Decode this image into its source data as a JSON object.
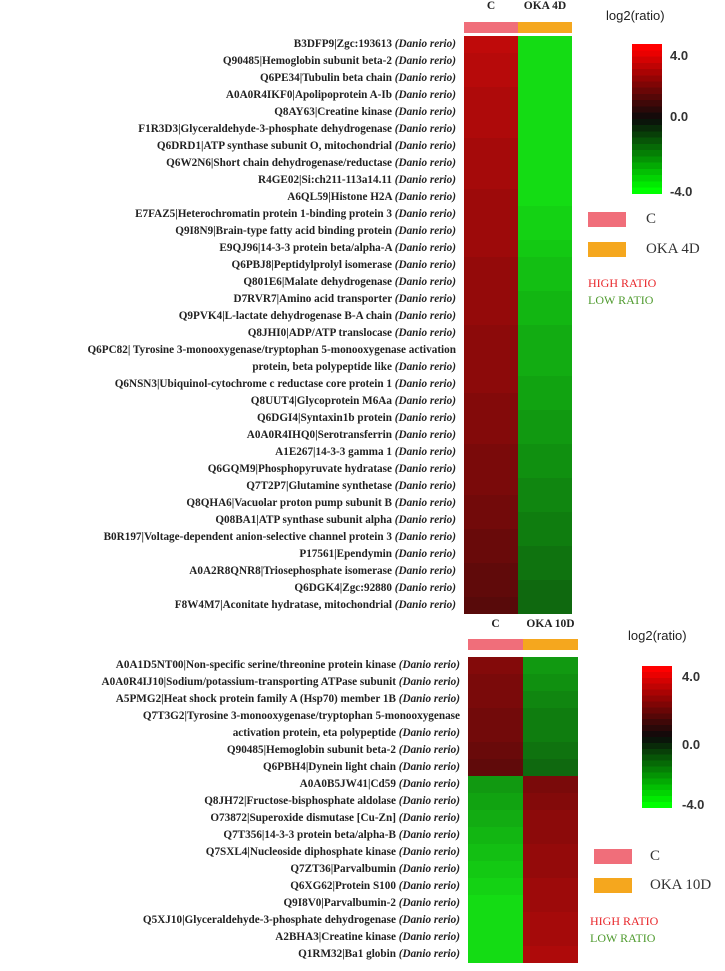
{
  "colors": {
    "control": "#f06e7a",
    "treated": "#f5a71e",
    "high": "#ff0000",
    "mid": "#000000",
    "low": "#00ff00",
    "high_text": "#e8262a",
    "low_text": "#4e9a2d"
  },
  "chart_data": [
    {
      "type": "heatmap",
      "columns": [
        "C",
        "OKA 4D"
      ],
      "scale": {
        "title": "log2(ratio)",
        "min": -4.0,
        "max": 4.0,
        "ticks": [
          "4.0",
          "0.0",
          "-4.0"
        ]
      },
      "legend": {
        "items": [
          "C",
          "OKA 4D"
        ],
        "high": "HIGH RATIO",
        "low": "LOW RATIO"
      },
      "rows": [
        {
          "id": "B3DFP9|Zgc:193613",
          "sp": "(Danio rerio)",
          "values": [
            2.1,
            -3.6
          ]
        },
        {
          "id": "Q90485|Hemoglobin subunit beta-2",
          "sp": "(Danio rerio)",
          "values": [
            2.0,
            -3.3
          ]
        },
        {
          "id": "Q6PE34|Tubulin beta chain",
          "sp": "(Danio rerio)",
          "values": [
            2.0,
            -3.1
          ]
        },
        {
          "id": "A0A0R4IKF0|Apolipoprotein A-Ib",
          "sp": "(Danio rerio)",
          "values": [
            1.9,
            -2.9
          ]
        },
        {
          "id": "Q8AY63|Creatine kinase",
          "sp": "(Danio rerio)",
          "values": [
            1.9,
            -2.7
          ]
        },
        {
          "id": "F1R3D3|Glyceraldehyde-3-phosphate dehydrogenase",
          "sp": "(Danio rerio)",
          "values": [
            1.9,
            -2.6
          ]
        },
        {
          "id": "Q6DRD1|ATP synthase subunit O, mitochondrial",
          "sp": "(Danio rerio)",
          "values": [
            1.8,
            -2.5
          ]
        },
        {
          "id": "Q6W2N6|Short chain dehydrogenase/reductase",
          "sp": "(Danio rerio)",
          "values": [
            1.8,
            -2.4
          ]
        },
        {
          "id": "R4GE02|Si:ch211-113a14.11",
          "sp": "(Danio rerio)",
          "values": [
            1.8,
            -2.3
          ]
        },
        {
          "id": "A6QL59|Histone H2A",
          "sp": "(Danio rerio)",
          "values": [
            1.7,
            -2.2
          ]
        },
        {
          "id": "E7FAZ5|Heterochromatin protein 1-binding protein 3",
          "sp": "(Danio rerio)",
          "values": [
            1.7,
            -2.1
          ]
        },
        {
          "id": "Q9I8N9|Brain-type fatty acid binding protein",
          "sp": "(Danio rerio)",
          "values": [
            1.7,
            -2.1
          ]
        },
        {
          "id": "E9QJ96|14-3-3 protein beta/alpha-A",
          "sp": "(Danio rerio)",
          "values": [
            1.7,
            -2.0
          ]
        },
        {
          "id": "Q6PBJ8|Peptidylprolyl isomerase",
          "sp": "(Danio rerio)",
          "values": [
            1.6,
            -1.9
          ]
        },
        {
          "id": "Q801E6|Malate dehydrogenase",
          "sp": "(Danio rerio)",
          "values": [
            1.6,
            -1.9
          ]
        },
        {
          "id": "D7RVR7|Amino acid transporter",
          "sp": "(Danio rerio)",
          "values": [
            1.6,
            -1.8
          ]
        },
        {
          "id": "Q9PVK4|L-lactate dehydrogenase B-A chain",
          "sp": "(Danio rerio)",
          "values": [
            1.6,
            -1.8
          ]
        },
        {
          "id": "Q8JHI0|ADP/ATP translocase",
          "sp": "(Danio rerio)",
          "values": [
            1.5,
            -1.7
          ]
        },
        {
          "id": "Q6PC82| Tyrosine 3-monooxygenase/tryptophan 5-monooxygenase activation",
          "line2": "protein, beta polypeptide like",
          "sp": "(Danio rerio)",
          "values": [
            1.5,
            -1.7
          ]
        },
        {
          "id": "Q6NSN3|Ubiquinol-cytochrome c reductase core protein 1",
          "sp": "(Danio rerio)",
          "values": [
            1.5,
            -1.6
          ]
        },
        {
          "id": "Q8UUT4|Glycoprotein M6Aa",
          "sp": "(Danio rerio)",
          "values": [
            1.4,
            -1.6
          ]
        },
        {
          "id": "Q6DGI4|Syntaxin1b protein",
          "sp": "(Danio rerio)",
          "values": [
            1.4,
            -1.5
          ]
        },
        {
          "id": "A0A0R4IHQ0|Serotransferrin",
          "sp": "(Danio rerio)",
          "values": [
            1.4,
            -1.5
          ]
        },
        {
          "id": "A1E267|14-3-3 gamma 1",
          "sp": "(Danio rerio)",
          "values": [
            1.3,
            -1.4
          ]
        },
        {
          "id": "Q6GQM9|Phosphopyruvate hydratase",
          "sp": "(Danio rerio)",
          "values": [
            1.3,
            -1.4
          ]
        },
        {
          "id": "Q7T2P7|Glutamine synthetase",
          "sp": "(Danio rerio)",
          "values": [
            1.3,
            -1.3
          ]
        },
        {
          "id": "Q8QHA6|Vacuolar proton pump subunit B",
          "sp": "(Danio rerio)",
          "values": [
            1.2,
            -1.3
          ]
        },
        {
          "id": "Q08BA1|ATP synthase subunit alpha",
          "sp": "(Danio rerio)",
          "values": [
            1.2,
            -1.2
          ]
        },
        {
          "id": "B0R197|Voltage-dependent anion-selective channel protein 3",
          "sp": "(Danio rerio)",
          "values": [
            1.1,
            -1.2
          ]
        },
        {
          "id": "P17561|Ependymin",
          "sp": "(Danio rerio)",
          "values": [
            1.1,
            -1.1
          ]
        },
        {
          "id": "A0A2R8QNR8|Triosephosphate isomerase",
          "sp": "(Danio rerio)",
          "values": [
            1.0,
            -1.1
          ]
        },
        {
          "id": "Q6DGK4|Zgc:92880",
          "sp": "(Danio rerio)",
          "values": [
            1.0,
            -1.0
          ]
        },
        {
          "id": "F8W4M7|Aconitate hydratase, mitochondrial",
          "sp": "(Danio rerio)",
          "values": [
            0.9,
            -1.0
          ]
        }
      ]
    },
    {
      "type": "heatmap",
      "columns": [
        "C",
        "OKA 10D"
      ],
      "scale": {
        "title": "log2(ratio)",
        "min": -4.0,
        "max": 4.0,
        "ticks": [
          "4.0",
          "0.0",
          "-4.0"
        ]
      },
      "legend": {
        "items": [
          "C",
          "OKA 10D"
        ],
        "high": "HIGH RATIO",
        "low": "LOW RATIO"
      },
      "rows": [
        {
          "id": "A0A1D5NT00|Non-specific serine/threonine protein kinase",
          "sp": "(Danio rerio)",
          "values": [
            1.4,
            -1.5
          ]
        },
        {
          "id": "A0A0R4IJ10|Sodium/potassium-transporting ATPase subunit",
          "sp": "(Danio rerio)",
          "values": [
            1.3,
            -1.4
          ]
        },
        {
          "id": "A5PMG2|Heat shock protein family A (Hsp70) member 1B",
          "sp": "(Danio rerio)",
          "values": [
            1.3,
            -1.3
          ]
        },
        {
          "id": "Q7T3G2|Tyrosine 3-monooxygenase/tryptophan 5-monooxygenase",
          "line2": "activation protein, eta polypeptide",
          "sp": "(Danio rerio)",
          "values": [
            1.2,
            -1.2
          ]
        },
        {
          "id": "Q90485|Hemoglobin subunit beta-2",
          "sp": "(Danio rerio)",
          "values": [
            1.1,
            -1.1
          ]
        },
        {
          "id": "Q6PBH4|Dynein light chain",
          "sp": "(Danio rerio)",
          "values": [
            1.0,
            -1.0
          ]
        },
        {
          "id": "A0A0B5JW41|Cd59",
          "sp": "(Danio rerio)",
          "values": [
            -1.5,
            1.3
          ]
        },
        {
          "id": "Q8JH72|Fructose-bisphosphate aldolase",
          "sp": "(Danio rerio)",
          "values": [
            -1.6,
            1.4
          ]
        },
        {
          "id": "O73872|Superoxide dismutase [Cu-Zn]",
          "sp": "(Danio rerio)",
          "values": [
            -1.7,
            1.5
          ]
        },
        {
          "id": "Q7T356|14-3-3 protein beta/alpha-B",
          "sp": "(Danio rerio)",
          "values": [
            -1.8,
            1.5
          ]
        },
        {
          "id": "Q7SXL4|Nucleoside diphosphate kinase",
          "sp": "(Danio rerio)",
          "values": [
            -1.9,
            1.6
          ]
        },
        {
          "id": "Q7ZT36|Parvalbumin",
          "sp": "(Danio rerio)",
          "values": [
            -2.0,
            1.6
          ]
        },
        {
          "id": "Q6XG62|Protein S100",
          "sp": "(Danio rerio)",
          "values": [
            -2.1,
            1.7
          ]
        },
        {
          "id": "Q9I8V0|Parvalbumin-2",
          "sp": "(Danio rerio)",
          "values": [
            -2.2,
            1.7
          ]
        },
        {
          "id": "Q5XJ10|Glyceraldehyde-3-phosphate dehydrogenase",
          "sp": "(Danio rerio)",
          "values": [
            -2.3,
            1.8
          ]
        },
        {
          "id": "A2BHA3|Creatine kinase",
          "sp": "(Danio rerio)",
          "values": [
            -2.4,
            1.8
          ]
        },
        {
          "id": "Q1RM32|Ba1 globin",
          "sp": "(Danio rerio)",
          "values": [
            -2.5,
            1.9
          ]
        }
      ]
    }
  ]
}
